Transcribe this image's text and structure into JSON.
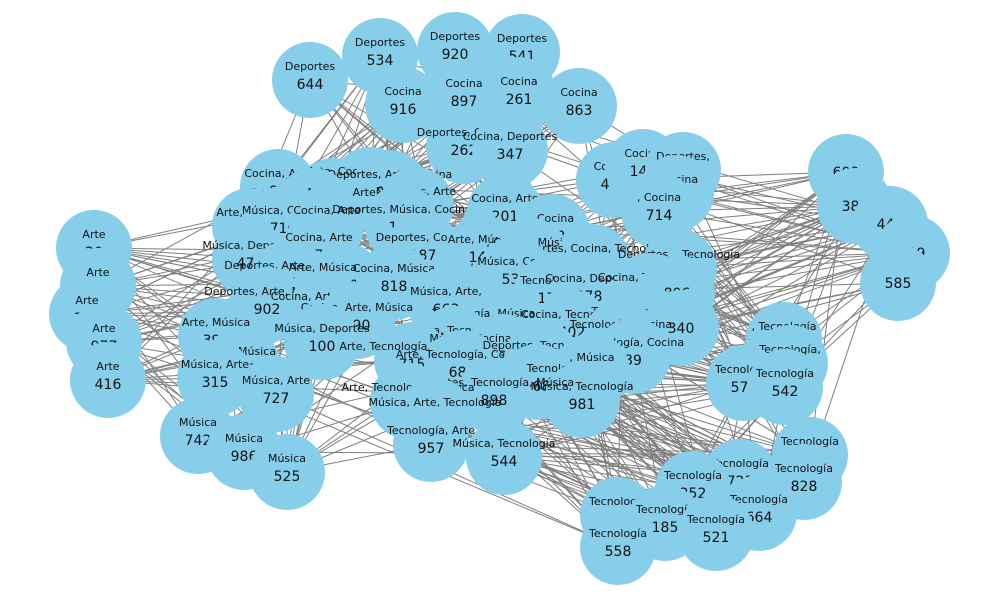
{
  "style": {
    "node_color": "#87ceeb",
    "edge_color": "#808080",
    "background": "#ffffff"
  },
  "nodes": [
    {
      "id": "644",
      "category": "Deportes"
    },
    {
      "id": "534",
      "category": "Deportes"
    },
    {
      "id": "920",
      "category": "Deportes"
    },
    {
      "id": "541",
      "category": "Deportes"
    },
    {
      "id": "916",
      "category": "Cocina"
    },
    {
      "id": "897",
      "category": "Cocina"
    },
    {
      "id": "261",
      "category": "Cocina"
    },
    {
      "id": "863",
      "category": "Cocina"
    },
    {
      "id": "262",
      "category": "Deportes, Cocina"
    },
    {
      "id": "347",
      "category": "Cocina, Deportes"
    },
    {
      "id": "81",
      "category": "Cocina, Arte"
    },
    {
      "id": "694",
      "category": "Música, Deportes"
    },
    {
      "id": "389",
      "category": "Arte, Cocina, Deportes"
    },
    {
      "id": "842",
      "category": "Deportes, Arte, Cocina"
    },
    {
      "id": "879",
      "category": "Deportes, Arte"
    },
    {
      "id": "480",
      "category": "Deportes, Música, Arte"
    },
    {
      "id": "940",
      "category": "Arte, Cocina"
    },
    {
      "id": "716",
      "category": "Música, Cocina"
    },
    {
      "id": "953",
      "category": "Cocina, Arte"
    },
    {
      "id": "172",
      "category": "Deportes, Música, Cocina"
    },
    {
      "id": "123",
      "category": "Arte,"
    },
    {
      "id": "201",
      "category": "Cocina, Arte"
    },
    {
      "id": "463",
      "category": ", Cocina"
    },
    {
      "id": "464",
      "category": "Cocina,"
    },
    {
      "id": "140",
      "category": "Cocina"
    },
    {
      "id": "462",
      "category": "Deportes,"
    },
    {
      "id": "815",
      "category": ", Cocina"
    },
    {
      "id": "714",
      "category": ", Cocina"
    },
    {
      "id": "609",
      "category": ""
    },
    {
      "id": "380",
      "category": ""
    },
    {
      "id": "447",
      "category": ""
    },
    {
      "id": "319",
      "category": ""
    },
    {
      "id": "585",
      "category": ""
    },
    {
      "id": "20",
      "category": "Arte"
    },
    {
      "id": "781",
      "category": "Arte"
    },
    {
      "id": "301",
      "category": "Arte"
    },
    {
      "id": "977",
      "category": "Arte"
    },
    {
      "id": "416",
      "category": "Arte"
    },
    {
      "id": "474",
      "category": "Música, Deportes"
    },
    {
      "id": "175",
      "category": "Cocina, Arte"
    },
    {
      "id": "187",
      "category": "Deportes, Cocina"
    },
    {
      "id": "141",
      "category": "Arte, Música"
    },
    {
      "id": "832",
      "category": ", Cocina, Música"
    },
    {
      "id": "543",
      "category": "Deportes, Cocina, Tecnología"
    },
    {
      "id": "952",
      "category": "Deportes, , Tecnología"
    },
    {
      "id": "67",
      "category": "Deportes, Arte, Música"
    },
    {
      "id": "290",
      "category": "Arte, Música, Cocina"
    },
    {
      "id": "818",
      "category": "Cocina, Música"
    },
    {
      "id": "532",
      "category": ", Música, Cocina"
    },
    {
      "id": "174",
      "category": "Tecnología,"
    },
    {
      "id": "878",
      "category": ", Cocina, Deportes"
    },
    {
      "id": "658",
      "category": "Cocina, Tecnología"
    },
    {
      "id": "806",
      "category": ""
    },
    {
      "id": "902",
      "category": "Deportes, Arte, Música"
    },
    {
      "id": "465",
      "category": "Cocina, Arte, Música"
    },
    {
      "id": "663",
      "category": "Música, Arte,"
    },
    {
      "id": "390",
      "category": "Cocina, Arte, Música"
    },
    {
      "id": "398",
      "category": "Arte, Música"
    },
    {
      "id": "100",
      "category": "Música, Deportes"
    },
    {
      "id": "311",
      "category": "Tecnología, Música, Cocina"
    },
    {
      "id": "402",
      "category": "Cocina, Tecnología"
    },
    {
      "id": "590",
      "category": "Tecnología, Deportes"
    },
    {
      "id": "340",
      "category": ""
    },
    {
      "id": "223",
      "category": "Cocina, Tecnología"
    },
    {
      "id": "967",
      "category": "Tecnología, Cocina"
    },
    {
      "id": "205",
      "category": "Arte, Música"
    },
    {
      "id": "315",
      "category": "Música, Arte"
    },
    {
      "id": "715",
      "category": "Arte, Tecnología, Deportes"
    },
    {
      "id": "234",
      "category": "Música, Cocina, Tecnología"
    },
    {
      "id": "39",
      "category": "Tecnología, Cocina"
    },
    {
      "id": "483",
      "category": ", Tecnología"
    },
    {
      "id": "686",
      "category": "Arte, Tecnología, Cocina"
    },
    {
      "id": "576",
      "category": "Deportes, Tecnología,"
    },
    {
      "id": "537",
      "category": ", Música"
    },
    {
      "id": "790",
      "category": "Tecnología,"
    },
    {
      "id": "727",
      "category": "Música, Arte"
    },
    {
      "id": "168",
      "category": "Arte, , Tecnología"
    },
    {
      "id": "981",
      "category": "Música, Tecnología"
    },
    {
      "id": "577",
      "category": "Tecnología"
    },
    {
      "id": "542",
      "category": "Tecnología"
    },
    {
      "id": "898",
      "category": "Deportes, Tecnología, Música"
    },
    {
      "id": "52",
      "category": "Arte, Tecnología, Música"
    },
    {
      "id": "933",
      "category": "Música, Arte, Tecnología"
    },
    {
      "id": "742",
      "category": "Música"
    },
    {
      "id": "986",
      "category": "Música"
    },
    {
      "id": "525",
      "category": "Música"
    },
    {
      "id": "957",
      "category": "Tecnología, Arte"
    },
    {
      "id": "544",
      "category": "Música, Tecnología"
    },
    {
      "id": "313",
      "category": "Tecnología"
    },
    {
      "id": "721",
      "category": "Tecnología"
    },
    {
      "id": "828",
      "category": "Tecnología"
    },
    {
      "id": "252",
      "category": "Tecnología"
    },
    {
      "id": "664",
      "category": "Tecnología"
    },
    {
      "id": "150",
      "category": "Tecnología"
    },
    {
      "id": "185",
      "category": "Tecnología"
    },
    {
      "id": "521",
      "category": "Tecnología"
    },
    {
      "id": "558",
      "category": "Tecnología"
    }
  ]
}
